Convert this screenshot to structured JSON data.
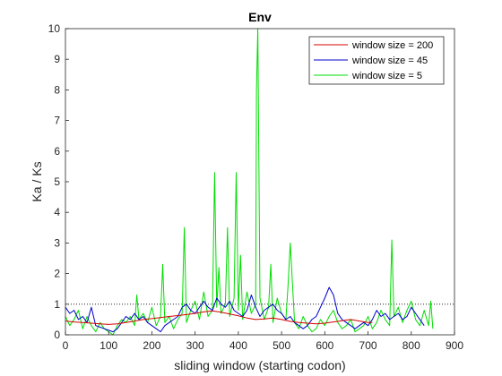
{
  "chart_data": {
    "type": "line",
    "title": "Env",
    "xlabel": "sliding window (starting codon)",
    "ylabel": "Ka / Ks",
    "xlim": [
      0,
      900
    ],
    "ylim": [
      0,
      10
    ],
    "xticks": [
      0,
      100,
      200,
      300,
      400,
      500,
      600,
      700,
      800,
      900
    ],
    "yticks": [
      0,
      1,
      2,
      3,
      4,
      5,
      6,
      7,
      8,
      9,
      10
    ],
    "grid": false,
    "legend_position": "top-right",
    "reference_line": {
      "y": 1,
      "style": "dotted",
      "color": "#000000"
    },
    "series": [
      {
        "name": "window size = 200",
        "color": "#d40000",
        "x": [
          0,
          20,
          40,
          60,
          80,
          100,
          120,
          140,
          160,
          180,
          200,
          220,
          240,
          260,
          280,
          300,
          320,
          340,
          360,
          380,
          400,
          420,
          440,
          460,
          480,
          500,
          520,
          540,
          560,
          580,
          600,
          620,
          640,
          660,
          680,
          700,
          710
        ],
        "y": [
          0.45,
          0.42,
          0.4,
          0.38,
          0.36,
          0.34,
          0.36,
          0.4,
          0.45,
          0.5,
          0.53,
          0.56,
          0.6,
          0.63,
          0.66,
          0.7,
          0.75,
          0.78,
          0.74,
          0.68,
          0.62,
          0.55,
          0.5,
          0.52,
          0.55,
          0.5,
          0.44,
          0.4,
          0.38,
          0.36,
          0.38,
          0.42,
          0.46,
          0.5,
          0.45,
          0.4,
          0.4
        ]
      },
      {
        "name": "window size = 45",
        "color": "#0000cc",
        "x": [
          0,
          10,
          20,
          30,
          40,
          50,
          60,
          70,
          80,
          90,
          100,
          110,
          120,
          130,
          140,
          150,
          160,
          170,
          180,
          190,
          200,
          210,
          220,
          230,
          240,
          250,
          260,
          270,
          280,
          290,
          300,
          310,
          320,
          330,
          340,
          350,
          360,
          370,
          380,
          390,
          400,
          410,
          420,
          430,
          440,
          450,
          460,
          470,
          480,
          490,
          500,
          510,
          520,
          530,
          540,
          550,
          560,
          570,
          580,
          590,
          600,
          610,
          620,
          630,
          640,
          650,
          660,
          670,
          680,
          690,
          700,
          710,
          720,
          730,
          740,
          750,
          760,
          770,
          780,
          790,
          800,
          810,
          820,
          830
        ],
        "y": [
          0.9,
          0.7,
          0.8,
          0.5,
          0.6,
          0.4,
          0.9,
          0.3,
          0.25,
          0.2,
          0.15,
          0.1,
          0.2,
          0.4,
          0.6,
          0.5,
          0.7,
          0.5,
          0.6,
          0.4,
          0.3,
          0.2,
          0.1,
          0.3,
          0.4,
          0.5,
          0.6,
          0.9,
          1.0,
          0.8,
          0.7,
          0.9,
          1.1,
          0.9,
          0.8,
          1.2,
          1.0,
          0.9,
          1.1,
          0.8,
          0.7,
          0.6,
          0.8,
          1.3,
          0.9,
          0.6,
          0.8,
          0.9,
          1.0,
          0.8,
          0.7,
          0.5,
          0.6,
          0.4,
          0.3,
          0.2,
          0.3,
          0.5,
          0.6,
          0.9,
          1.2,
          1.55,
          1.3,
          0.7,
          0.5,
          0.4,
          0.3,
          0.2,
          0.3,
          0.4,
          0.3,
          0.5,
          0.8,
          0.6,
          0.7,
          0.5,
          0.6,
          0.7,
          0.5,
          0.6,
          0.9,
          0.7,
          0.5,
          0.3
        ]
      },
      {
        "name": "window size = 5",
        "color": "#00dd00",
        "x": [
          0,
          10,
          20,
          30,
          40,
          50,
          60,
          70,
          80,
          90,
          100,
          110,
          120,
          130,
          140,
          150,
          160,
          165,
          170,
          180,
          190,
          200,
          210,
          220,
          225,
          230,
          240,
          250,
          260,
          270,
          275,
          280,
          290,
          300,
          310,
          320,
          330,
          340,
          345,
          350,
          355,
          360,
          370,
          375,
          380,
          390,
          395,
          400,
          405,
          410,
          420,
          430,
          440,
          442,
          445,
          450,
          460,
          470,
          475,
          480,
          490,
          500,
          510,
          515,
          520,
          530,
          540,
          550,
          560,
          570,
          580,
          590,
          600,
          610,
          620,
          630,
          640,
          650,
          660,
          670,
          680,
          690,
          700,
          710,
          720,
          730,
          740,
          750,
          755,
          760,
          770,
          780,
          790,
          800,
          810,
          820,
          830,
          840,
          845,
          850
        ],
        "y": [
          0.6,
          0.3,
          0.5,
          0.8,
          0.2,
          0.6,
          0.3,
          0.1,
          0.4,
          0.2,
          0.1,
          0.0,
          0.3,
          0.5,
          0.4,
          0.6,
          0.3,
          1.3,
          0.5,
          0.7,
          0.4,
          0.9,
          0.3,
          0.6,
          2.3,
          0.4,
          0.6,
          0.2,
          0.5,
          0.7,
          3.5,
          0.4,
          0.8,
          1.1,
          0.5,
          1.4,
          0.6,
          0.8,
          5.3,
          0.9,
          2.2,
          0.7,
          1.0,
          3.5,
          0.6,
          1.2,
          5.3,
          0.8,
          2.6,
          0.5,
          1.4,
          0.7,
          1.0,
          8.0,
          10.0,
          1.2,
          0.5,
          0.9,
          2.3,
          0.4,
          1.2,
          0.7,
          0.5,
          1.6,
          3.0,
          0.4,
          0.2,
          0.6,
          0.3,
          0.1,
          0.2,
          0.5,
          0.3,
          0.6,
          0.8,
          0.4,
          0.2,
          0.3,
          0.5,
          0.1,
          0.2,
          0.3,
          0.6,
          0.2,
          0.4,
          0.8,
          0.5,
          0.3,
          3.1,
          0.6,
          0.9,
          0.4,
          0.8,
          1.1,
          0.5,
          0.3,
          0.8,
          0.3,
          1.1,
          0.2
        ]
      }
    ]
  }
}
